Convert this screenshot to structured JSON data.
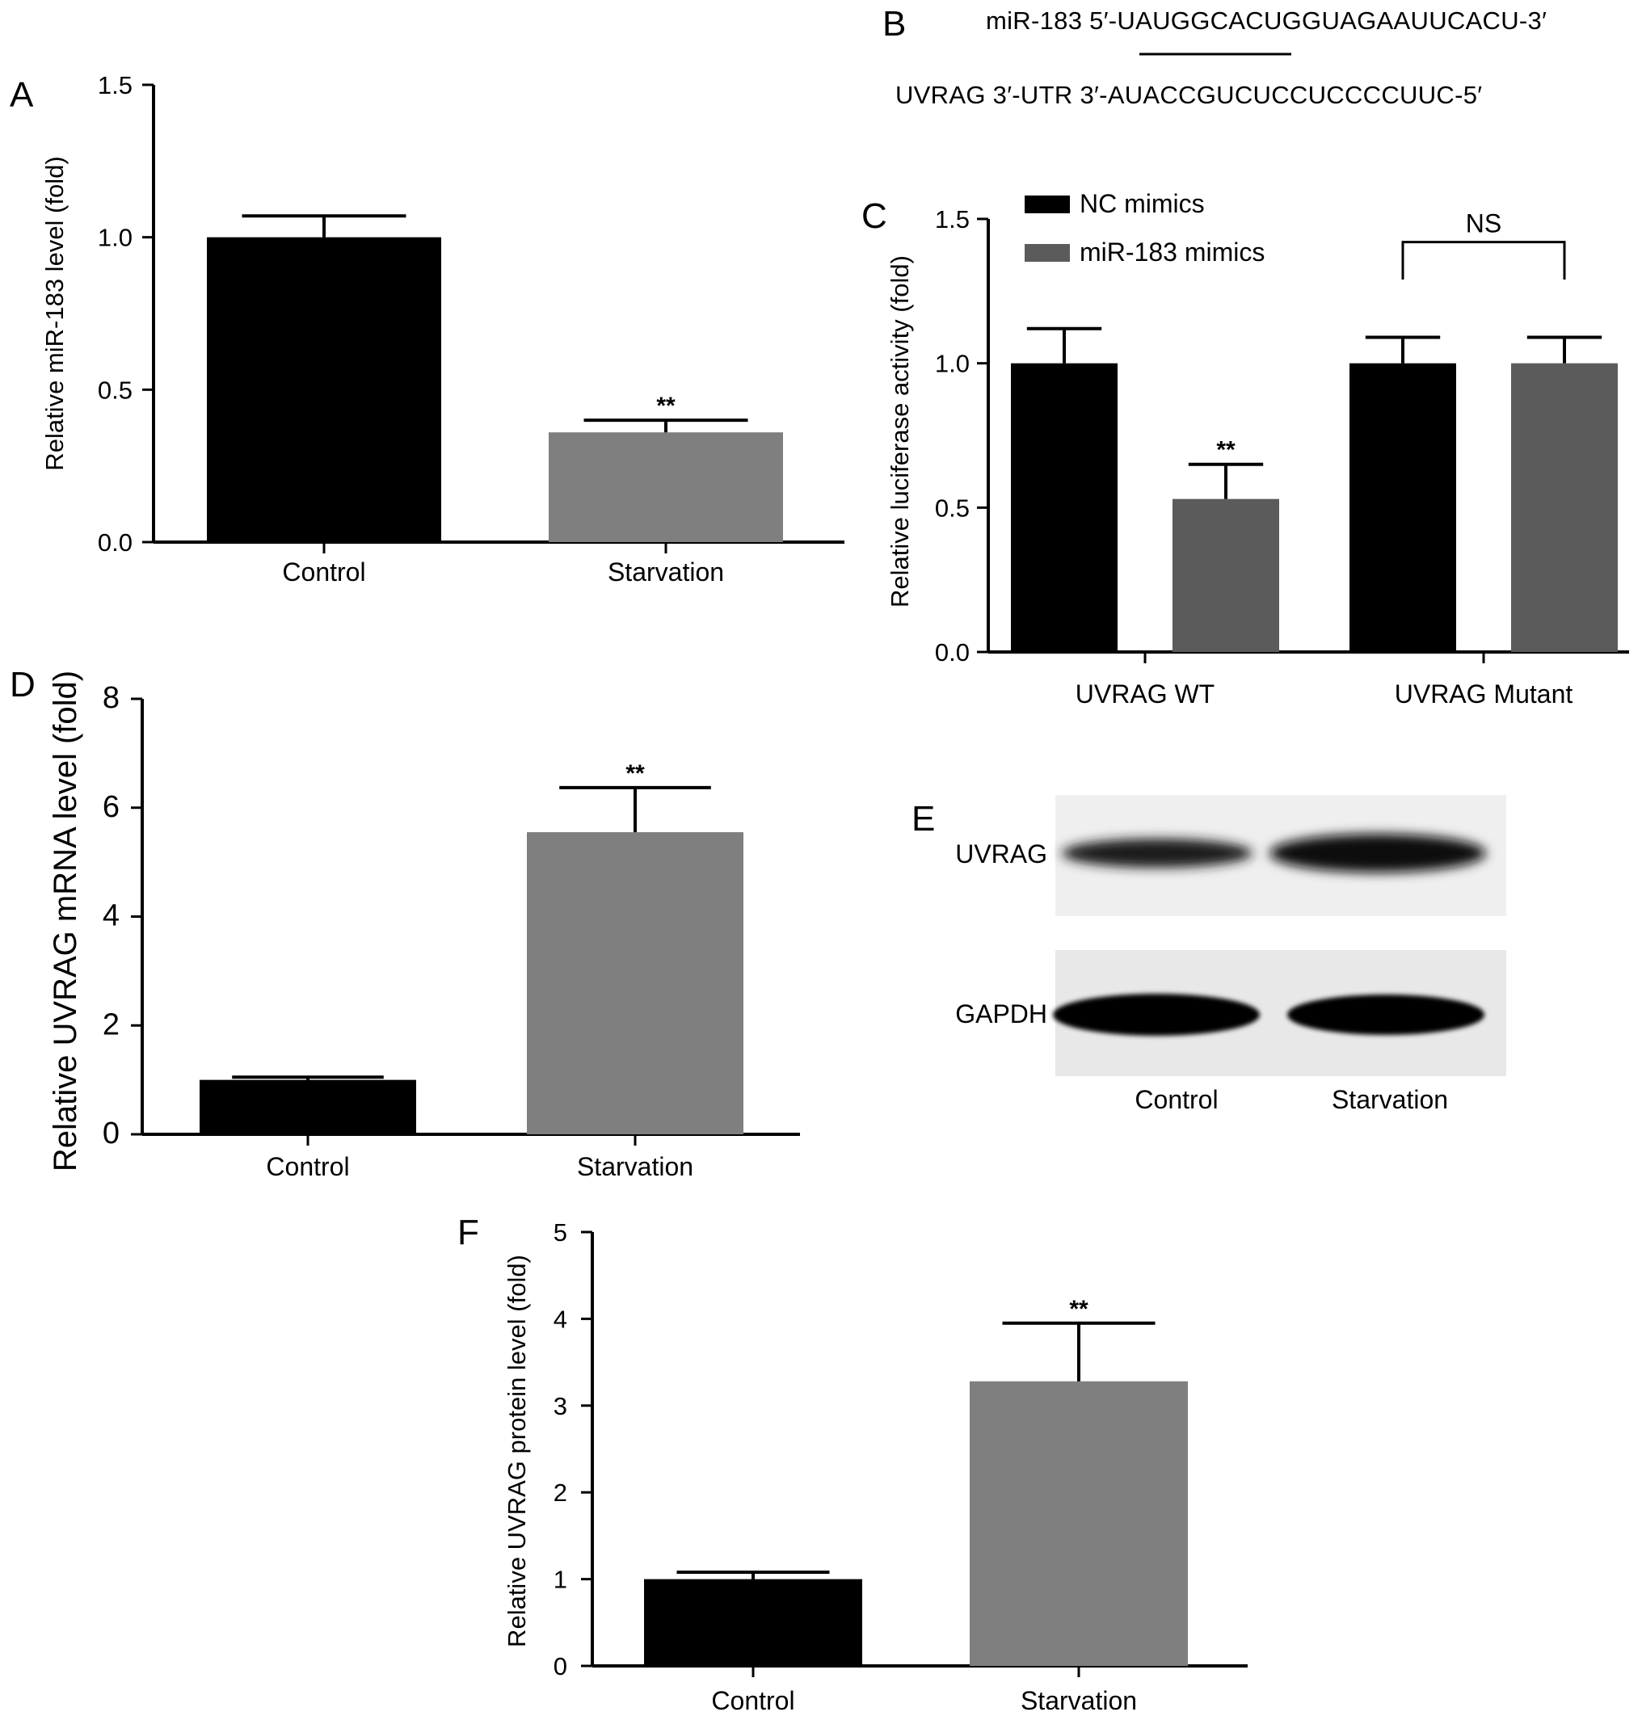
{
  "panels": {
    "A": {
      "letter": "A"
    },
    "B": {
      "letter": "B",
      "mir_line": "miR-183 5′-UAUGGCACUGGUAGAAUUCACU-3′",
      "utr_line": "UVRAG 3′-UTR 3′-AUACCGUCUCCUCCCCUUC-5′"
    },
    "C": {
      "letter": "C"
    },
    "D": {
      "letter": "D"
    },
    "E": {
      "letter": "E",
      "row_labels": [
        "UVRAG",
        "GAPDH"
      ],
      "lane_labels": [
        "Control",
        "Starvation"
      ]
    },
    "F": {
      "letter": "F"
    }
  },
  "colors": {
    "black": "#000000",
    "gray_light": "#7f7f7f",
    "gray_dark": "#5b5b5b"
  },
  "chart_data": [
    {
      "id": "A",
      "type": "bar",
      "categories": [
        "Control",
        "Starvation"
      ],
      "values": [
        1.0,
        0.36
      ],
      "errors": [
        0.07,
        0.04
      ],
      "significance": [
        "",
        "**"
      ],
      "colors": [
        "#000000",
        "#7f7f7f"
      ],
      "ylabel": "Relative miR-183 level (fold)",
      "ylim": [
        0,
        1.5
      ],
      "yticks": [
        "0.0",
        "0.5",
        "1.0",
        "1.5"
      ]
    },
    {
      "id": "C",
      "type": "bar",
      "categories": [
        "UVRAG WT",
        "UVRAG Mutant"
      ],
      "series": [
        {
          "name": "NC mimics",
          "values": [
            1.0,
            1.0
          ],
          "errors": [
            0.12,
            0.09
          ],
          "significance": [
            "",
            ""
          ]
        },
        {
          "name": "miR-183 mimics",
          "values": [
            0.53,
            1.0
          ],
          "errors": [
            0.12,
            0.09
          ],
          "significance": [
            "**",
            ""
          ]
        }
      ],
      "series_colors": [
        "#000000",
        "#5b5b5b"
      ],
      "bracket_label": "NS",
      "ylabel": "Relative luciferase activity (fold)",
      "ylim": [
        0,
        1.5
      ],
      "yticks": [
        "0.0",
        "0.5",
        "1.0",
        "1.5"
      ],
      "legend": "top-left"
    },
    {
      "id": "D",
      "type": "bar",
      "categories": [
        "Control",
        "Starvation"
      ],
      "values": [
        1.0,
        5.55
      ],
      "errors": [
        0.05,
        0.82
      ],
      "significance": [
        "",
        "**"
      ],
      "colors": [
        "#000000",
        "#7f7f7f"
      ],
      "ylabel": "Relative UVRAG mRNA level (fold)",
      "ylim": [
        0,
        8
      ],
      "yticks": [
        "0",
        "2",
        "4",
        "6",
        "8"
      ]
    },
    {
      "id": "F",
      "type": "bar",
      "categories": [
        "Control",
        "Starvation"
      ],
      "values": [
        1.0,
        3.28
      ],
      "errors": [
        0.08,
        0.67
      ],
      "significance": [
        "",
        "**"
      ],
      "colors": [
        "#000000",
        "#7f7f7f"
      ],
      "ylabel": "Relative UVRAG protein level (fold)",
      "ylim": [
        0,
        5
      ],
      "yticks": [
        "0",
        "1",
        "2",
        "3",
        "4",
        "5"
      ]
    }
  ]
}
